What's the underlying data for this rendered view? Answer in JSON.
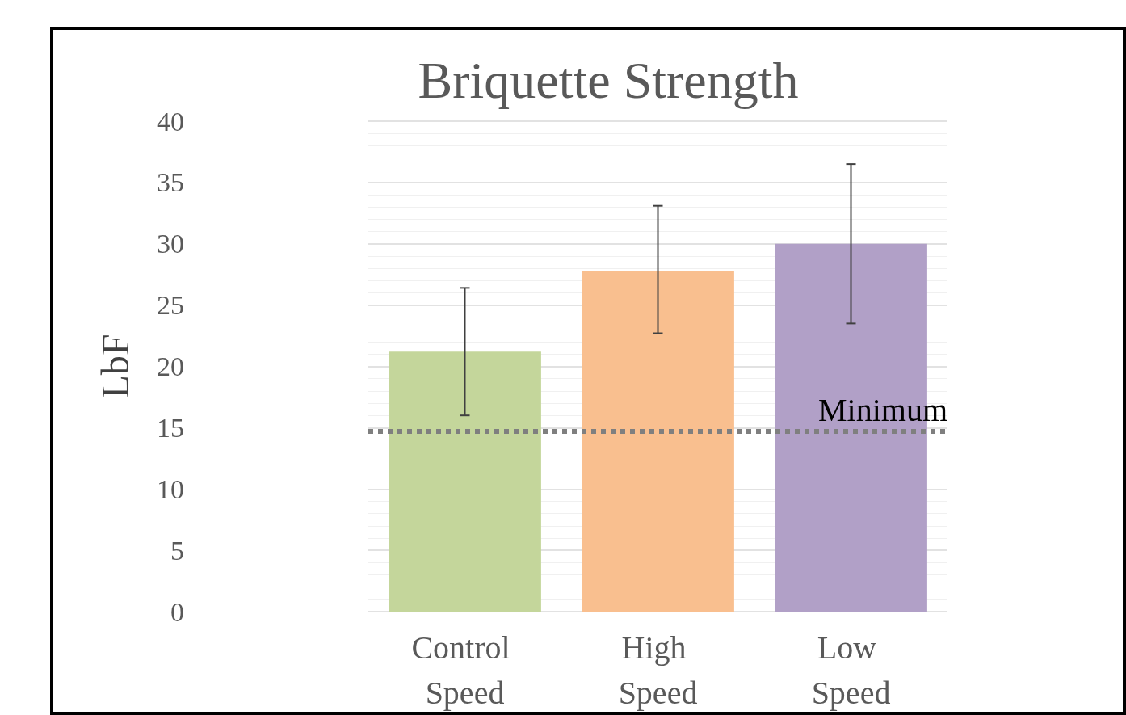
{
  "chart_data": {
    "type": "bar",
    "title": "Briquette Strength",
    "ylabel": "LbF",
    "categories": [
      "Control Speed",
      "High Speed",
      "Low Speed"
    ],
    "values": [
      21.2,
      27.8,
      30
    ],
    "colors": [
      "#c4d69b",
      "#f9bf8f",
      "#b1a0c7"
    ],
    "errors": [
      [
        16,
        26.4
      ],
      [
        22.7,
        33.1
      ],
      [
        23.5,
        36.5
      ]
    ],
    "ylim": [
      0,
      40
    ],
    "yticks": [
      0,
      5,
      10,
      15,
      20,
      25,
      30,
      35,
      40
    ],
    "grid": "y",
    "ref_lines": [
      {
        "axis": "y",
        "value": 14.7,
        "label": "Minimum",
        "color": "#7f7f7f",
        "line_style": "dotted"
      }
    ]
  }
}
